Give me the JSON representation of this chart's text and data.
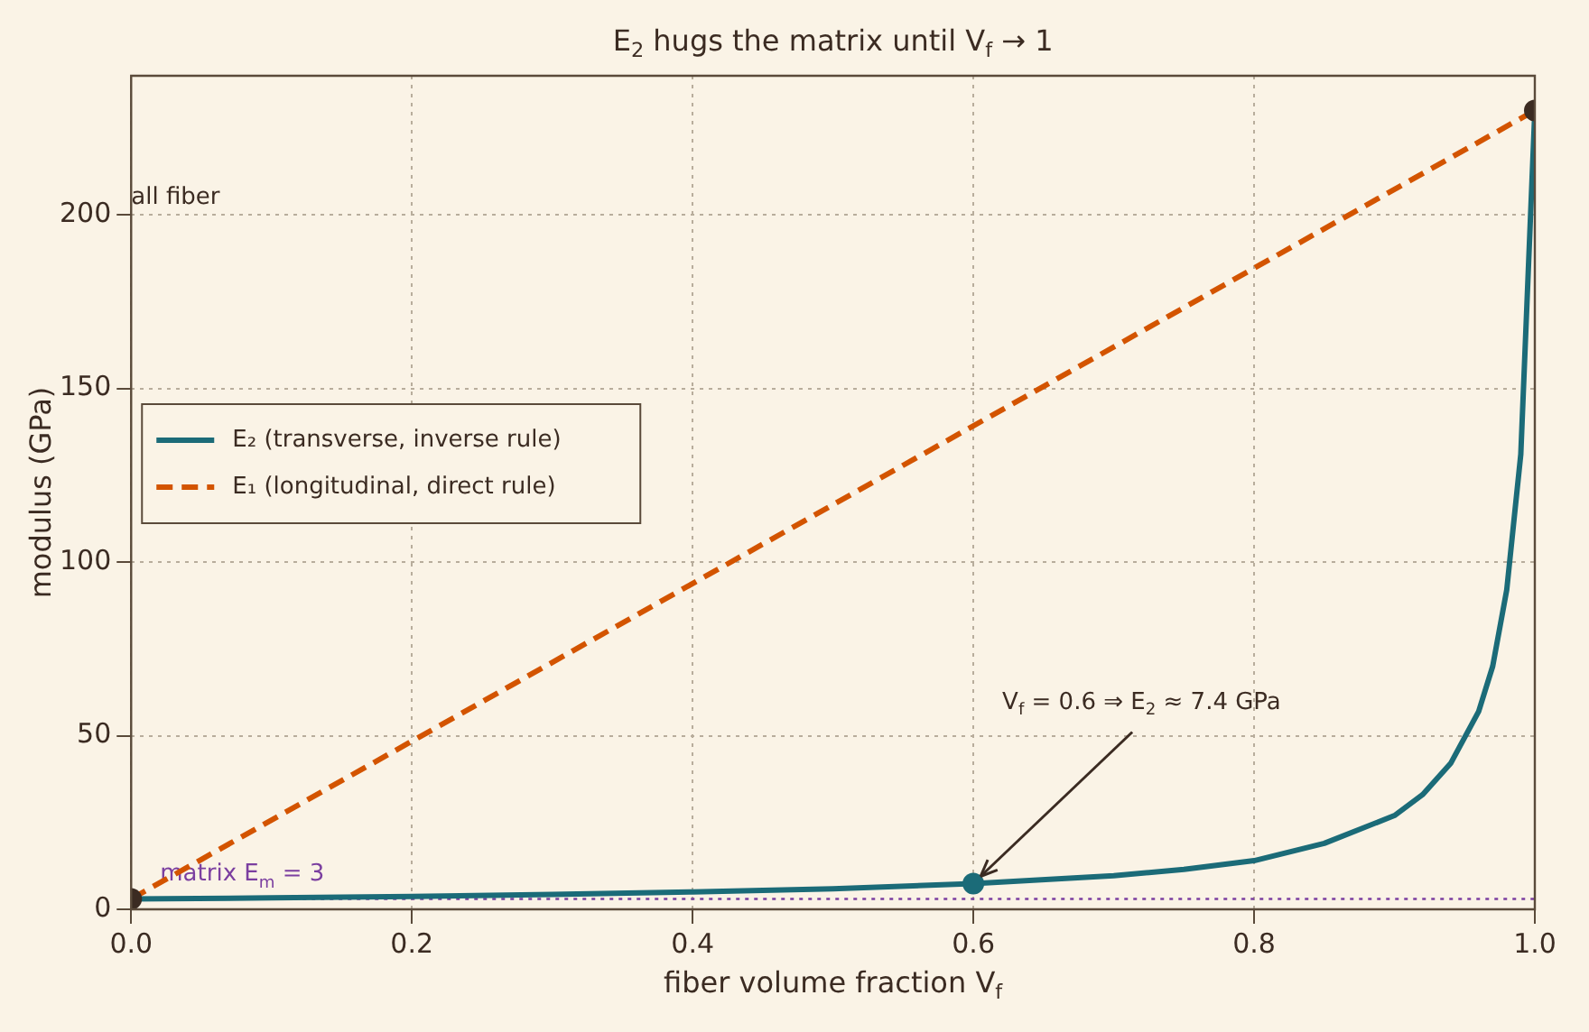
{
  "chart_data": {
    "type": "line",
    "title": "E$_{2}$ hugs the matrix until V$_{f}$ → 1",
    "xlabel": "fiber volume fraction V$_{f}$",
    "ylabel": "modulus (GPa)",
    "x": [
      0,
      0.1,
      0.2,
      0.3,
      0.4,
      0.5,
      0.6,
      0.7,
      0.75,
      0.8,
      0.85,
      0.9,
      0.92,
      0.94,
      0.96,
      0.97,
      0.98,
      0.99,
      1.0
    ],
    "series": [
      {
        "name": "E₂ (transverse, inverse rule)",
        "color": "#1b6b78",
        "values": [
          3,
          3.3,
          3.7,
          4.3,
          5,
          5.9,
          7.4,
          9.7,
          11.5,
          14,
          19,
          27,
          33,
          42,
          57,
          70,
          92,
          131,
          230
        ]
      },
      {
        "name": "E₁ (longitudinal, direct rule)",
        "color": "#d35400",
        "line_style": "dashed",
        "x": [
          0,
          1
        ],
        "values": [
          3,
          230
        ]
      },
      {
        "type": "scatter",
        "marker": "circle",
        "x": [
          0,
          0.6,
          1
        ],
        "colors": [
          "#3b2b22",
          "#1b6b78",
          "#3b2b22"
        ],
        "values": [
          3,
          7.4,
          230
        ]
      }
    ],
    "xlim": [
      0,
      1
    ],
    "xticks": [
      {
        "value": 0,
        "label": "0.0"
      },
      0.2,
      0.4,
      0.6,
      0.8,
      {
        "value": 1,
        "label": "1.0"
      }
    ],
    "ylim": [
      0,
      240
    ],
    "yticks": [
      0,
      50,
      100,
      150,
      200
    ],
    "grid": true,
    "legend": "left",
    "ref_lines": [
      {
        "axis": "y",
        "value": 3,
        "label": "matrix E$_{m}$ = 3",
        "color": "#7b3fa0",
        "line_style": "dotted"
      }
    ],
    "annotations": [
      "all fiber",
      {
        "text": "V$_{f}$ = 0.6 ⇒ E$_{2}$ ≈ 7.4 GPa",
        "x": 0.6,
        "y": 7.4
      }
    ]
  }
}
